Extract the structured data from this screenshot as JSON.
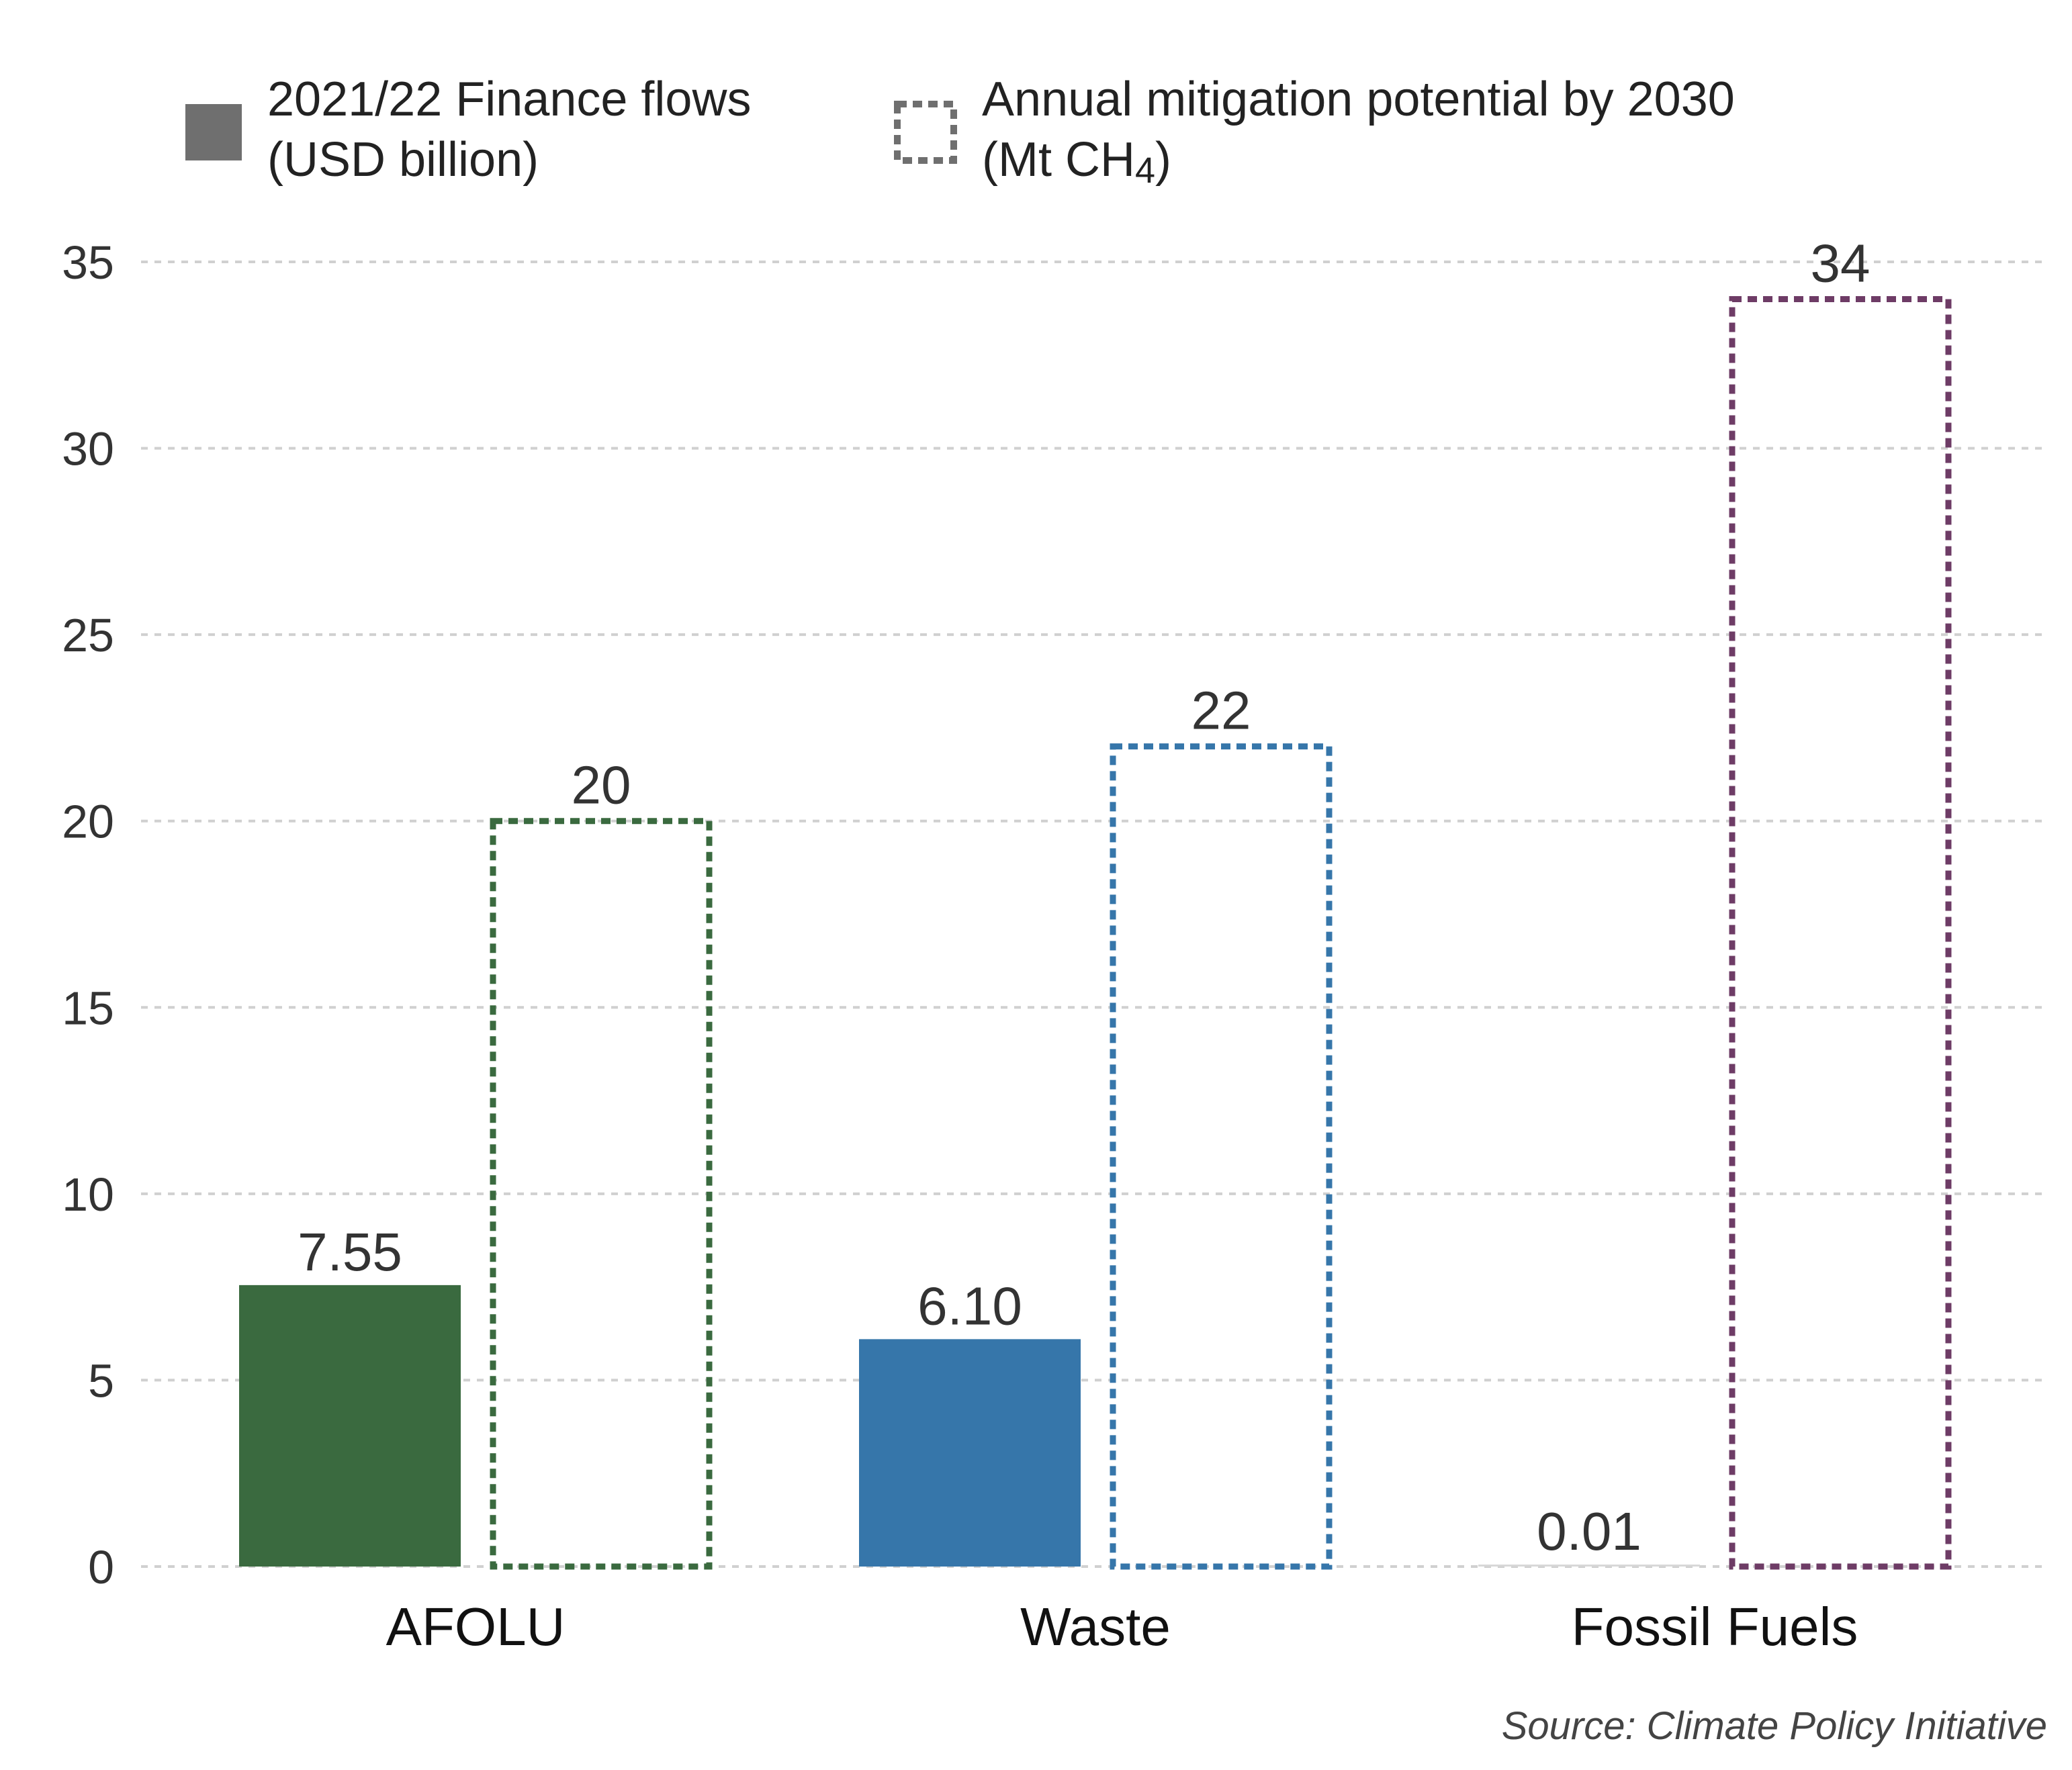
{
  "legend": {
    "finance_line1": "2021/22 Finance flows",
    "finance_line2": "(USD billion)",
    "mitigation_line1": "Annual mitigation potential by 2030",
    "mitigation_line2_prefix": "(Mt CH",
    "mitigation_line2_sub": "4",
    "mitigation_line2_suffix": ")"
  },
  "source": "Source: Climate Policy Initiative",
  "colors": {
    "afolu": "#3a6a3f",
    "waste": "#3676aa",
    "fossil": "#6e3c66",
    "legend_gray": "#6f6f6f",
    "grid": "#d0d0d0"
  },
  "chart_data": {
    "type": "bar",
    "categories": [
      "AFOLU",
      "Waste",
      "Fossil Fuels"
    ],
    "series": [
      {
        "name": "2021/22 Finance flows (USD billion)",
        "style": "solid",
        "values": [
          7.55,
          6.1,
          0.01
        ],
        "labels": [
          "7.55",
          "6.10",
          "0.01"
        ]
      },
      {
        "name": "Annual mitigation potential by 2030 (Mt CH4)",
        "style": "dashed-outline",
        "values": [
          20,
          22,
          34
        ],
        "labels": [
          "20",
          "22",
          "34"
        ]
      }
    ],
    "ylim": [
      0,
      35
    ],
    "yticks": [
      0,
      5,
      10,
      15,
      20,
      25,
      30,
      35
    ],
    "grid": true,
    "legend_position": "top"
  }
}
